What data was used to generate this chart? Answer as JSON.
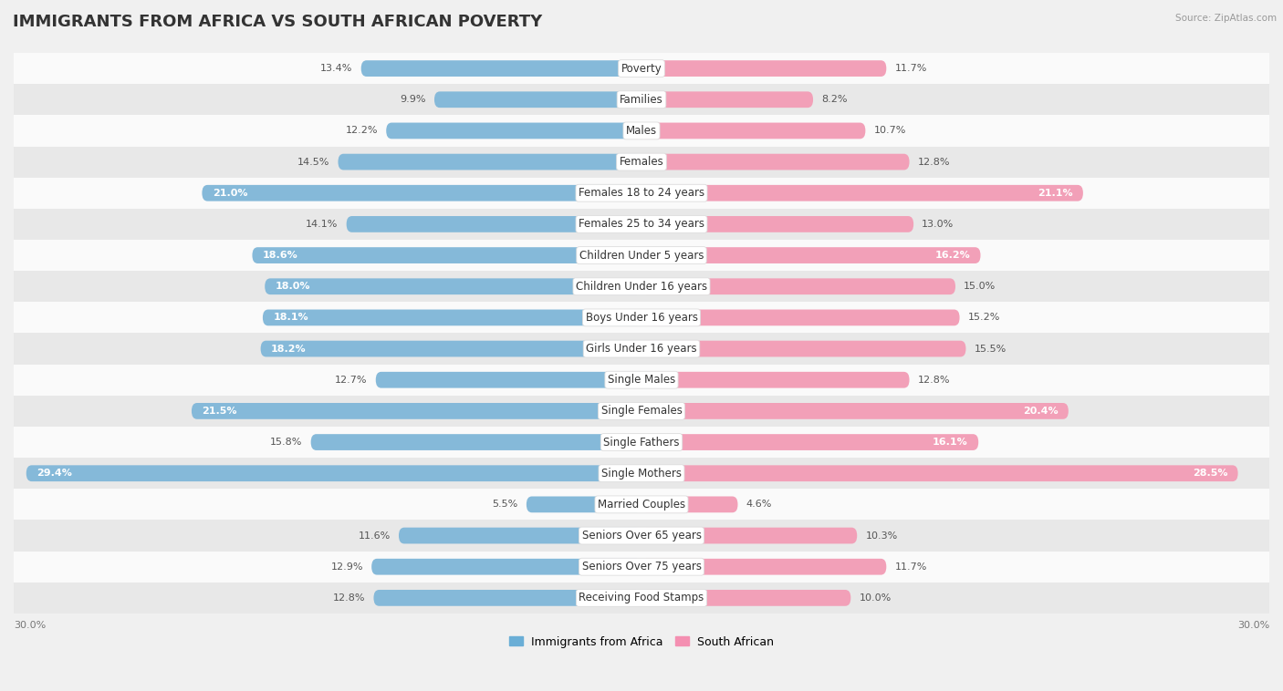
{
  "title": "IMMIGRANTS FROM AFRICA VS SOUTH AFRICAN POVERTY",
  "source": "Source: ZipAtlas.com",
  "categories": [
    "Poverty",
    "Families",
    "Males",
    "Females",
    "Females 18 to 24 years",
    "Females 25 to 34 years",
    "Children Under 5 years",
    "Children Under 16 years",
    "Boys Under 16 years",
    "Girls Under 16 years",
    "Single Males",
    "Single Females",
    "Single Fathers",
    "Single Mothers",
    "Married Couples",
    "Seniors Over 65 years",
    "Seniors Over 75 years",
    "Receiving Food Stamps"
  ],
  "left_values": [
    13.4,
    9.9,
    12.2,
    14.5,
    21.0,
    14.1,
    18.6,
    18.0,
    18.1,
    18.2,
    12.7,
    21.5,
    15.8,
    29.4,
    5.5,
    11.6,
    12.9,
    12.8
  ],
  "right_values": [
    11.7,
    8.2,
    10.7,
    12.8,
    21.1,
    13.0,
    16.2,
    15.0,
    15.2,
    15.5,
    12.8,
    20.4,
    16.1,
    28.5,
    4.6,
    10.3,
    11.7,
    10.0
  ],
  "left_color": "#85b9d9",
  "right_color": "#f2a0b8",
  "left_label": "Immigrants from Africa",
  "right_label": "South African",
  "left_label_color": "#6aaed6",
  "right_label_color": "#f48fb1",
  "axis_max": 30.0,
  "bg_color": "#f0f0f0",
  "row_bg_light": "#fafafa",
  "row_bg_dark": "#e8e8e8",
  "bar_height": 0.52,
  "title_fontsize": 13,
  "label_fontsize": 8.5,
  "value_fontsize": 8,
  "tick_fontsize": 8,
  "inside_threshold": 16.0
}
